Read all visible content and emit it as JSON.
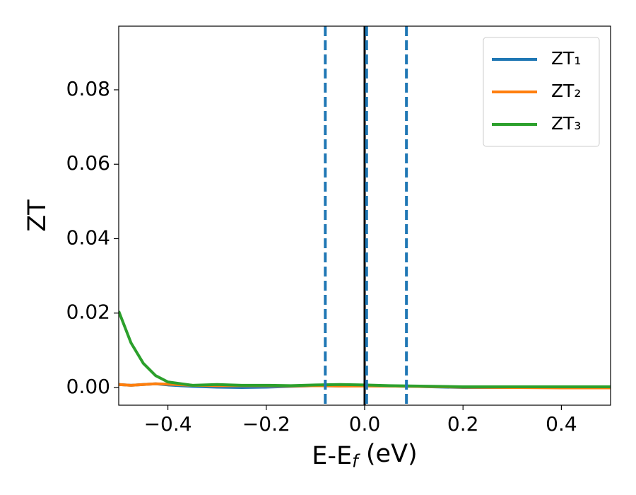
{
  "chart_data": {
    "type": "line",
    "x_label": "E-E_f (eV)",
    "y_label": "ZT",
    "xlim": [
      -0.5,
      0.5
    ],
    "ylim": [
      -0.00475,
      0.0971
    ],
    "xticks": [
      {
        "value": -0.4,
        "label": "−0.4"
      },
      {
        "value": -0.2,
        "label": "−0.2"
      },
      {
        "value": 0,
        "label": "0.0"
      },
      0.2,
      0.4
    ],
    "yticks": [
      {
        "value": 0,
        "label": "0.00"
      },
      0.02,
      0.04,
      0.06,
      0.08
    ],
    "legend": "upper right",
    "x": [
      -0.5,
      -0.475,
      -0.45,
      -0.425,
      -0.4,
      -0.35,
      -0.3,
      -0.25,
      -0.2,
      -0.15,
      -0.1,
      -0.05,
      0,
      0.05,
      0.1,
      0.2,
      0.3,
      0.4,
      0.5
    ],
    "series": [
      {
        "name": "ZT₁",
        "color": "#1f77b4",
        "values": [
          0.0008,
          0.0006,
          0.0008,
          0.001,
          0.0007,
          0.0003,
          0.0001,
          0.0,
          0.0001,
          0.0003,
          0.0005,
          0.0004,
          0.0005,
          0.0004,
          0.0003,
          0.0,
          0.0,
          0.0,
          0.0
        ]
      },
      {
        "name": "ZT₂",
        "color": "#ff7f0e",
        "values": [
          0.0008,
          0.0006,
          0.0008,
          0.001,
          0.0009,
          0.0006,
          0.0005,
          0.0005,
          0.0005,
          0.0004,
          0.0005,
          0.0004,
          0.0004,
          0.0004,
          0.0003,
          0.0001,
          0.0,
          -0.0001,
          -0.0001
        ]
      },
      {
        "name": "ZT₃",
        "color": "#2ca02c",
        "values": [
          0.0205,
          0.012,
          0.0065,
          0.0032,
          0.0015,
          0.0006,
          0.0008,
          0.0006,
          0.0006,
          0.0005,
          0.0007,
          0.0008,
          0.0007,
          0.0005,
          0.0004,
          0.0002,
          0.0002,
          0.0002,
          0.0002
        ]
      }
    ],
    "vlines": [
      {
        "x": 0,
        "color": "#000000",
        "style": "solid"
      },
      {
        "x": -0.08,
        "color": "#1f77b4",
        "style": "dashed"
      },
      {
        "x": 0.004,
        "color": "#1f77b4",
        "style": "dashed"
      },
      {
        "x": 0.085,
        "color": "#1f77b4",
        "style": "dashed"
      }
    ]
  }
}
